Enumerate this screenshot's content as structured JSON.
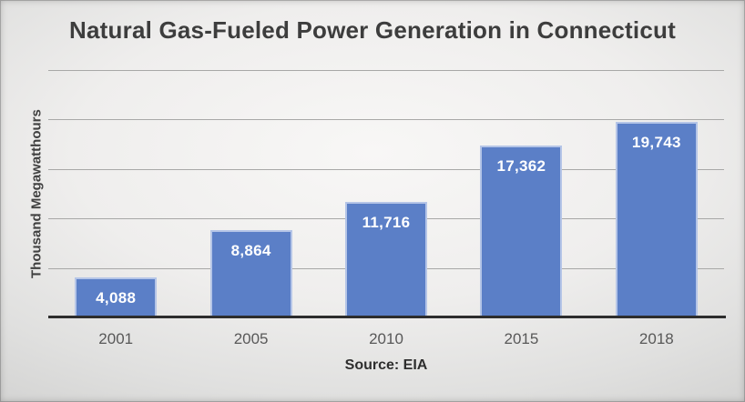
{
  "title": "Natural Gas-Fueled Power Generation in Connecticut",
  "y_axis_title": "Thousand Megawatthours",
  "source_label": "Source: EIA",
  "chart_data": {
    "type": "bar",
    "title": "Natural Gas-Fueled Power Generation in Connecticut",
    "xlabel": "",
    "ylabel": "Thousand Megawatthours",
    "categories": [
      "2001",
      "2005",
      "2010",
      "2015",
      "2018"
    ],
    "values": [
      4088,
      8864,
      11716,
      17362,
      19743
    ],
    "value_labels": [
      "4,088",
      "8,864",
      "11,716",
      "17,362",
      "19,743"
    ],
    "ylim": [
      0,
      25000
    ],
    "gridline_interval": 5000,
    "grid": true,
    "legend_position": "none",
    "annotation": "Source: EIA",
    "bar_color": "#5b7fc7",
    "bar_border_color": "#b5c5e7",
    "gridline_color": "#a8a8a7",
    "baseline_color": "#2d2d2d",
    "label_color": "#ffffff"
  }
}
